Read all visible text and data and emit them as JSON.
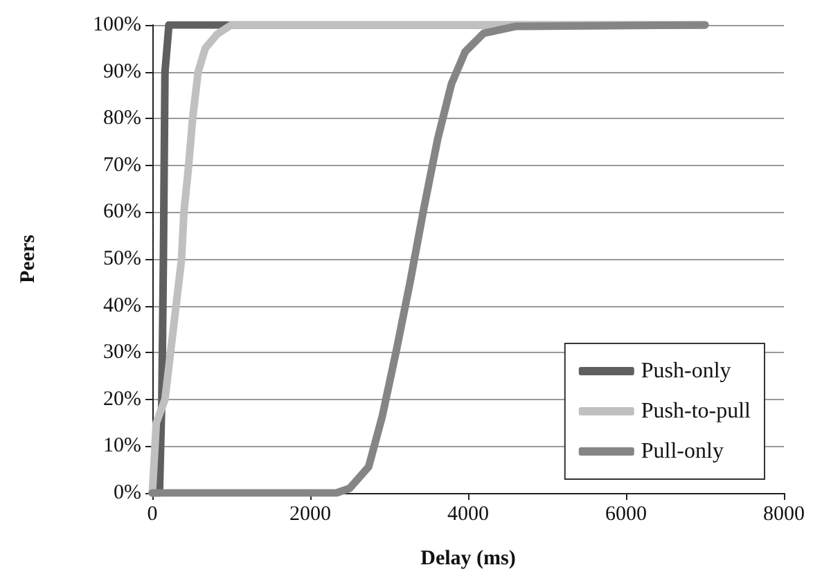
{
  "chart_data": {
    "type": "line",
    "xlabel": "Delay (ms)",
    "ylabel": "Peers",
    "xlim": [
      0,
      8000
    ],
    "xticks": [
      0,
      2000,
      4000,
      6000,
      8000
    ],
    "ylim": [
      0,
      100
    ],
    "yticks": [
      {
        "value": 0,
        "label": "0%"
      },
      {
        "value": 10,
        "label": "10%"
      },
      {
        "value": 20,
        "label": "20%"
      },
      {
        "value": 30,
        "label": "30%"
      },
      {
        "value": 40,
        "label": "40%"
      },
      {
        "value": 50,
        "label": "50%"
      },
      {
        "value": 60,
        "label": "60%"
      },
      {
        "value": 70,
        "label": "70%"
      },
      {
        "value": 80,
        "label": "80%"
      },
      {
        "value": 90,
        "label": "90%"
      },
      {
        "value": 100,
        "label": "100%"
      }
    ],
    "grid": "y",
    "legend": "bottom right",
    "marker": "none",
    "line_style": "solid",
    "series": [
      {
        "name": "Push-only",
        "color": "#5f5f5f",
        "x": [
          0,
          90,
          120,
          140,
          160,
          210,
          7000
        ],
        "values": [
          0,
          0,
          20,
          50,
          90,
          100,
          100
        ]
      },
      {
        "name": "Push-to-pull",
        "color": "#c0c0c0",
        "x": [
          0,
          50,
          160,
          230,
          300,
          370,
          400,
          460,
          510,
          580,
          670,
          820,
          1000,
          7000
        ],
        "values": [
          0,
          15,
          20,
          30,
          40,
          50,
          60,
          70,
          80,
          90,
          95,
          98,
          100,
          100
        ]
      },
      {
        "name": "Pull-only",
        "color": "#858585",
        "x": [
          0,
          2330,
          2500,
          2740,
          2914,
          3089,
          3264,
          3439,
          3614,
          3789,
          3963,
          4196,
          4600,
          7000
        ],
        "values": [
          0,
          0,
          1,
          5.6,
          16.5,
          30.3,
          45,
          60.8,
          75.6,
          87.4,
          94.3,
          98.2,
          99.7,
          100
        ]
      }
    ]
  }
}
